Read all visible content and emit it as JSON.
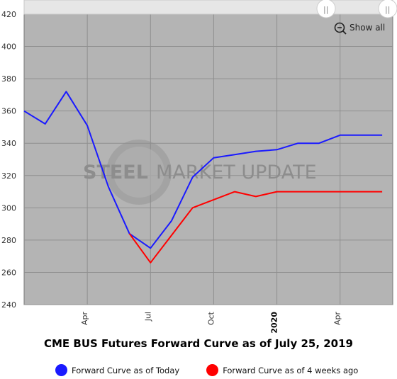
{
  "chart_data": {
    "type": "line",
    "title": "CME BUS Futures Forward Curve as of July 25, 2019",
    "xlabel": "",
    "ylabel": "",
    "x": [
      "2019-01",
      "2019-02",
      "2019-03",
      "2019-04",
      "2019-05",
      "2019-06",
      "2019-07",
      "2019-08",
      "2019-09",
      "2019-10",
      "2019-11",
      "2019-12",
      "2020-01",
      "2020-02",
      "2020-03",
      "2020-04",
      "2020-05",
      "2020-06"
    ],
    "x_ticks": [
      "Apr",
      "Jul",
      "Oct",
      "2020",
      "Apr"
    ],
    "y_ticks": [
      240,
      260,
      280,
      300,
      320,
      340,
      360,
      380,
      400,
      420
    ],
    "ylim": [
      240,
      420
    ],
    "grid": true,
    "legend_position": "bottom",
    "series": [
      {
        "name": "Forward Curve as of Today",
        "color": "#1a1aff",
        "values": [
          360,
          352,
          372,
          351,
          313,
          284,
          275,
          292,
          319,
          331,
          333,
          335,
          336,
          340,
          340,
          345,
          345,
          345
        ]
      },
      {
        "name": "Forward Curve as of 4 weeks ago",
        "color": "#ff0000",
        "values": [
          null,
          null,
          null,
          null,
          null,
          284,
          266,
          283,
          300,
          305,
          310,
          307,
          310,
          310,
          310,
          310,
          310,
          310
        ]
      }
    ]
  },
  "watermark": {
    "word1": "STEEL",
    "word2": "MARKET UPDATE"
  },
  "toolbar": {
    "show_all_label": "Show all"
  },
  "colors": {
    "plot_background": "#b4b4b4",
    "grid": "#8f8f8f"
  }
}
